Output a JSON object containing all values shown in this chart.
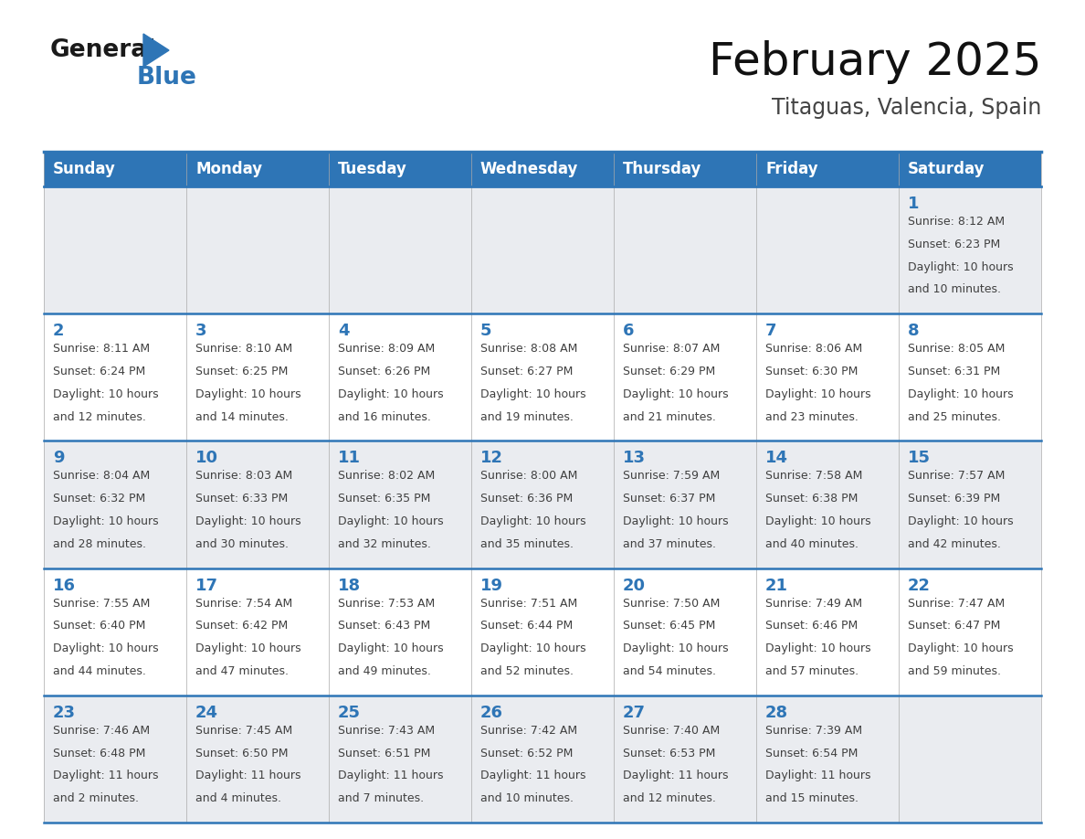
{
  "title": "February 2025",
  "subtitle": "Titaguas, Valencia, Spain",
  "header_color": "#2E75B6",
  "header_text_color": "#FFFFFF",
  "day_names": [
    "Sunday",
    "Monday",
    "Tuesday",
    "Wednesday",
    "Thursday",
    "Friday",
    "Saturday"
  ],
  "bg_color": "#FFFFFF",
  "row_bg": [
    "#EAECF0",
    "#FFFFFF",
    "#EAECF0",
    "#FFFFFF",
    "#EAECF0"
  ],
  "border_color": "#2E75B6",
  "date_color": "#2E75B6",
  "text_color": "#404040",
  "logo_general_color": "#1a1a1a",
  "logo_blue_color": "#2E75B6",
  "calendar": [
    [
      null,
      null,
      null,
      null,
      null,
      null,
      {
        "day": 1,
        "sunrise": "8:12 AM",
        "sunset": "6:23 PM",
        "daylight": "10 hours and 10 minutes."
      }
    ],
    [
      {
        "day": 2,
        "sunrise": "8:11 AM",
        "sunset": "6:24 PM",
        "daylight": "10 hours and 12 minutes."
      },
      {
        "day": 3,
        "sunrise": "8:10 AM",
        "sunset": "6:25 PM",
        "daylight": "10 hours and 14 minutes."
      },
      {
        "day": 4,
        "sunrise": "8:09 AM",
        "sunset": "6:26 PM",
        "daylight": "10 hours and 16 minutes."
      },
      {
        "day": 5,
        "sunrise": "8:08 AM",
        "sunset": "6:27 PM",
        "daylight": "10 hours and 19 minutes."
      },
      {
        "day": 6,
        "sunrise": "8:07 AM",
        "sunset": "6:29 PM",
        "daylight": "10 hours and 21 minutes."
      },
      {
        "day": 7,
        "sunrise": "8:06 AM",
        "sunset": "6:30 PM",
        "daylight": "10 hours and 23 minutes."
      },
      {
        "day": 8,
        "sunrise": "8:05 AM",
        "sunset": "6:31 PM",
        "daylight": "10 hours and 25 minutes."
      }
    ],
    [
      {
        "day": 9,
        "sunrise": "8:04 AM",
        "sunset": "6:32 PM",
        "daylight": "10 hours and 28 minutes."
      },
      {
        "day": 10,
        "sunrise": "8:03 AM",
        "sunset": "6:33 PM",
        "daylight": "10 hours and 30 minutes."
      },
      {
        "day": 11,
        "sunrise": "8:02 AM",
        "sunset": "6:35 PM",
        "daylight": "10 hours and 32 minutes."
      },
      {
        "day": 12,
        "sunrise": "8:00 AM",
        "sunset": "6:36 PM",
        "daylight": "10 hours and 35 minutes."
      },
      {
        "day": 13,
        "sunrise": "7:59 AM",
        "sunset": "6:37 PM",
        "daylight": "10 hours and 37 minutes."
      },
      {
        "day": 14,
        "sunrise": "7:58 AM",
        "sunset": "6:38 PM",
        "daylight": "10 hours and 40 minutes."
      },
      {
        "day": 15,
        "sunrise": "7:57 AM",
        "sunset": "6:39 PM",
        "daylight": "10 hours and 42 minutes."
      }
    ],
    [
      {
        "day": 16,
        "sunrise": "7:55 AM",
        "sunset": "6:40 PM",
        "daylight": "10 hours and 44 minutes."
      },
      {
        "day": 17,
        "sunrise": "7:54 AM",
        "sunset": "6:42 PM",
        "daylight": "10 hours and 47 minutes."
      },
      {
        "day": 18,
        "sunrise": "7:53 AM",
        "sunset": "6:43 PM",
        "daylight": "10 hours and 49 minutes."
      },
      {
        "day": 19,
        "sunrise": "7:51 AM",
        "sunset": "6:44 PM",
        "daylight": "10 hours and 52 minutes."
      },
      {
        "day": 20,
        "sunrise": "7:50 AM",
        "sunset": "6:45 PM",
        "daylight": "10 hours and 54 minutes."
      },
      {
        "day": 21,
        "sunrise": "7:49 AM",
        "sunset": "6:46 PM",
        "daylight": "10 hours and 57 minutes."
      },
      {
        "day": 22,
        "sunrise": "7:47 AM",
        "sunset": "6:47 PM",
        "daylight": "10 hours and 59 minutes."
      }
    ],
    [
      {
        "day": 23,
        "sunrise": "7:46 AM",
        "sunset": "6:48 PM",
        "daylight": "11 hours and 2 minutes."
      },
      {
        "day": 24,
        "sunrise": "7:45 AM",
        "sunset": "6:50 PM",
        "daylight": "11 hours and 4 minutes."
      },
      {
        "day": 25,
        "sunrise": "7:43 AM",
        "sunset": "6:51 PM",
        "daylight": "11 hours and 7 minutes."
      },
      {
        "day": 26,
        "sunrise": "7:42 AM",
        "sunset": "6:52 PM",
        "daylight": "11 hours and 10 minutes."
      },
      {
        "day": 27,
        "sunrise": "7:40 AM",
        "sunset": "6:53 PM",
        "daylight": "11 hours and 12 minutes."
      },
      {
        "day": 28,
        "sunrise": "7:39 AM",
        "sunset": "6:54 PM",
        "daylight": "11 hours and 15 minutes."
      },
      null
    ]
  ]
}
